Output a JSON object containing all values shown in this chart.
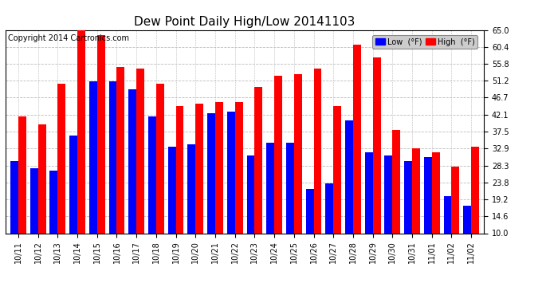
{
  "title": "Dew Point Daily High/Low 20141103",
  "copyright": "Copyright 2014 Cartronics.com",
  "categories": [
    "10/11",
    "10/12",
    "10/13",
    "10/14",
    "10/15",
    "10/16",
    "10/17",
    "10/18",
    "10/19",
    "10/20",
    "10/21",
    "10/22",
    "10/23",
    "10/24",
    "10/25",
    "10/26",
    "10/27",
    "10/28",
    "10/29",
    "10/30",
    "10/31",
    "11/01",
    "11/02",
    "11/02"
  ],
  "low_values": [
    29.5,
    27.5,
    27.0,
    36.5,
    51.0,
    51.0,
    49.0,
    41.5,
    33.5,
    34.0,
    42.5,
    43.0,
    31.0,
    34.5,
    34.5,
    22.0,
    23.5,
    40.5,
    32.0,
    31.0,
    29.5,
    30.5,
    20.0,
    17.5
  ],
  "high_values": [
    41.5,
    39.5,
    50.5,
    65.0,
    63.5,
    55.0,
    54.5,
    50.5,
    44.5,
    45.0,
    45.5,
    45.5,
    49.5,
    52.5,
    53.0,
    54.5,
    44.5,
    61.0,
    57.5,
    38.0,
    33.0,
    32.0,
    28.0,
    33.5
  ],
  "ylim": [
    10.0,
    65.0
  ],
  "yticks": [
    10.0,
    14.6,
    19.2,
    23.8,
    28.3,
    32.9,
    37.5,
    42.1,
    46.7,
    51.2,
    55.8,
    60.4,
    65.0
  ],
  "bar_width": 0.4,
  "low_color": "#0000ff",
  "high_color": "#ff0000",
  "bg_color": "#ffffff",
  "grid_color": "#bbbbbb",
  "title_fontsize": 11,
  "copyright_fontsize": 7,
  "tick_fontsize": 7,
  "figwidth": 6.9,
  "figheight": 3.75,
  "dpi": 100
}
